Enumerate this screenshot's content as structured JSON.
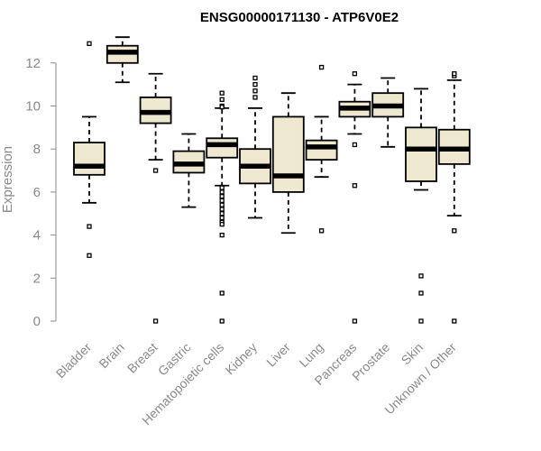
{
  "chart_data": {
    "type": "boxplot",
    "title": "ENSG00000171130 - ATP6V0E2",
    "xlabel": "",
    "ylabel": "Expression",
    "ylim": [
      0,
      13.3
    ],
    "yticks": [
      0,
      2,
      4,
      6,
      8,
      10,
      12
    ],
    "box_fill": "#efe8d0",
    "categories": [
      "Bladder",
      "Brain",
      "Breast",
      "Gastric",
      "Hematopoietic cells",
      "Kidney",
      "Liver",
      "Lung",
      "Pancreas",
      "Prostate",
      "Skin",
      "Unknown / Other"
    ],
    "boxes": [
      {
        "category": "Bladder",
        "whisker_low": 5.5,
        "q1": 6.8,
        "median": 7.2,
        "q3": 8.3,
        "whisker_high": 9.5,
        "outliers": [
          12.9,
          4.4,
          3.05
        ]
      },
      {
        "category": "Brain",
        "whisker_low": 11.1,
        "q1": 12.0,
        "median": 12.5,
        "q3": 12.8,
        "whisker_high": 13.2,
        "outliers": []
      },
      {
        "category": "Breast",
        "whisker_low": 7.5,
        "q1": 9.2,
        "median": 9.7,
        "q3": 10.4,
        "whisker_high": 11.5,
        "outliers": [
          7.0,
          0.0
        ]
      },
      {
        "category": "Gastric",
        "whisker_low": 5.3,
        "q1": 6.9,
        "median": 7.3,
        "q3": 7.9,
        "whisker_high": 8.7,
        "outliers": []
      },
      {
        "category": "Hematopoietic cells",
        "whisker_low": 6.3,
        "q1": 7.6,
        "median": 8.2,
        "q3": 8.5,
        "whisker_high": 9.9,
        "outliers": [
          10.6,
          10.3,
          10.0,
          9.95,
          6.2,
          6.0,
          5.8,
          5.6,
          5.4,
          5.2,
          5.0,
          4.8,
          4.6,
          4.5,
          4.0,
          1.3,
          0.0
        ]
      },
      {
        "category": "Kidney",
        "whisker_low": 4.8,
        "q1": 6.4,
        "median": 7.2,
        "q3": 8.0,
        "whisker_high": 9.9,
        "outliers": [
          11.3,
          11.0,
          10.7,
          10.4
        ]
      },
      {
        "category": "Liver",
        "whisker_low": 4.1,
        "q1": 6.0,
        "median": 6.75,
        "q3": 9.5,
        "whisker_high": 10.6,
        "outliers": []
      },
      {
        "category": "Lung",
        "whisker_low": 6.7,
        "q1": 7.5,
        "median": 8.1,
        "q3": 8.4,
        "whisker_high": 9.5,
        "outliers": [
          11.8,
          4.2
        ]
      },
      {
        "category": "Pancreas",
        "whisker_low": 8.7,
        "q1": 9.5,
        "median": 9.9,
        "q3": 10.2,
        "whisker_high": 11.0,
        "outliers": [
          11.5,
          8.2,
          6.3,
          0.0
        ]
      },
      {
        "category": "Prostate",
        "whisker_low": 8.1,
        "q1": 9.5,
        "median": 10.0,
        "q3": 10.6,
        "whisker_high": 11.3,
        "outliers": []
      },
      {
        "category": "Skin",
        "whisker_low": 6.1,
        "q1": 6.5,
        "median": 8.0,
        "q3": 9.0,
        "whisker_high": 10.8,
        "outliers": [
          2.1,
          1.3,
          0.0
        ]
      },
      {
        "category": "Unknown / Other",
        "whisker_low": 4.9,
        "q1": 7.3,
        "median": 8.0,
        "q3": 8.9,
        "whisker_high": 11.2,
        "outliers": [
          11.4,
          11.5,
          4.2,
          0.0
        ]
      }
    ]
  }
}
